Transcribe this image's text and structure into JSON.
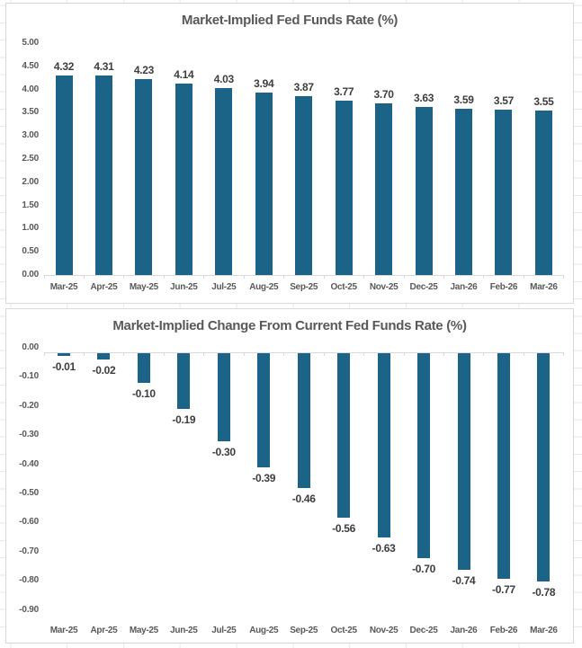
{
  "colors": {
    "bar": "#1c6388",
    "title_text": "#595959",
    "axis_text": "#595959",
    "data_label_text": "#3d3d3d",
    "axis_line": "#d9d9d9",
    "sheet_gridline": "#e7e7e7",
    "chart_border": "#d8d8d8"
  },
  "chart_data": [
    {
      "type": "bar",
      "title": "Market-Implied Fed Funds Rate (%)",
      "categories": [
        "Mar-25",
        "Apr-25",
        "May-25",
        "Jun-25",
        "Jul-25",
        "Aug-25",
        "Sep-25",
        "Oct-25",
        "Nov-25",
        "Dec-25",
        "Jan-26",
        "Feb-26",
        "Mar-26"
      ],
      "values": [
        4.32,
        4.31,
        4.23,
        4.14,
        4.03,
        3.94,
        3.87,
        3.77,
        3.7,
        3.63,
        3.59,
        3.57,
        3.55
      ],
      "value_labels": [
        "4.32",
        "4.31",
        "4.23",
        "4.14",
        "4.03",
        "3.94",
        "3.87",
        "3.77",
        "3.70",
        "3.63",
        "3.59",
        "3.57",
        "3.55"
      ],
      "yticks": [
        "5.00",
        "4.50",
        "4.00",
        "3.50",
        "3.00",
        "2.50",
        "2.00",
        "1.50",
        "1.00",
        "0.50",
        "0.00"
      ],
      "ylim": [
        0,
        5
      ],
      "ytick_step": 0.5,
      "xlabel": "",
      "ylabel": "",
      "gridlines": "none",
      "legend": "none",
      "data_labels_position": "above bars",
      "category_axis_position": "bottom"
    },
    {
      "type": "bar",
      "title": "Market-Implied Change From Current Fed Funds Rate (%)",
      "categories": [
        "Mar-25",
        "Apr-25",
        "May-25",
        "Jun-25",
        "Jul-25",
        "Aug-25",
        "Sep-25",
        "Oct-25",
        "Nov-25",
        "Dec-25",
        "Jan-26",
        "Feb-26",
        "Mar-26"
      ],
      "values": [
        -0.01,
        -0.02,
        -0.1,
        -0.19,
        -0.3,
        -0.39,
        -0.46,
        -0.56,
        -0.63,
        -0.7,
        -0.74,
        -0.77,
        -0.78
      ],
      "value_labels": [
        "-0.01",
        "-0.02",
        "-0.10",
        "-0.19",
        "-0.30",
        "-0.39",
        "-0.46",
        "-0.56",
        "-0.63",
        "-0.70",
        "-0.74",
        "-0.77",
        "-0.78"
      ],
      "yticks": [
        "0.00",
        "-0.10",
        "-0.20",
        "-0.30",
        "-0.40",
        "-0.50",
        "-0.60",
        "-0.70",
        "-0.80",
        "-0.90"
      ],
      "ylim": [
        -0.9,
        0
      ],
      "ytick_step": 0.1,
      "xlabel": "",
      "ylabel": "",
      "gridlines": "none",
      "legend": "none",
      "data_labels_position": "below bars",
      "category_axis_position": "labels low, axis at zero"
    }
  ]
}
